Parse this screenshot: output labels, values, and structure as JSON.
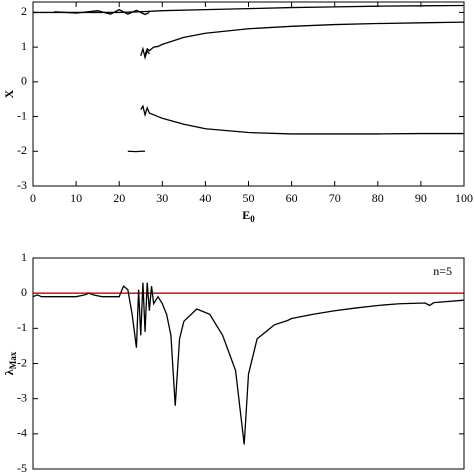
{
  "chart_data": [
    {
      "type": "line",
      "xlabel": "E",
      "xlabel_sub": "0",
      "ylabel": "X",
      "xlim": [
        0,
        100
      ],
      "ylim": [
        -3,
        2.3
      ],
      "xticks": [
        0,
        10,
        20,
        30,
        40,
        50,
        60,
        70,
        80,
        90,
        100
      ],
      "yticks": [
        -3,
        -2,
        -1,
        0,
        1,
        2
      ],
      "series": [
        {
          "color": "#000000",
          "x": [
            0,
            10,
            20,
            25,
            30,
            40,
            50,
            60,
            70,
            80,
            90,
            100
          ],
          "values": [
            2,
            2,
            2,
            2.02,
            2.05,
            2.08,
            2.11,
            2.14,
            2.16,
            2.18,
            2.19,
            2.2
          ]
        },
        {
          "color": "#000000",
          "x": [
            5,
            10,
            15,
            18,
            20,
            22,
            24,
            26,
            27
          ],
          "values": [
            2.02,
            1.98,
            2.05,
            1.95,
            2.08,
            1.95,
            2.06,
            1.94,
            2.0
          ]
        },
        {
          "color": "#000000",
          "x": [
            26,
            26.5,
            27,
            28,
            29,
            30,
            35,
            40,
            50,
            60,
            70,
            80,
            90,
            100
          ],
          "values": [
            0.78,
            0.95,
            0.9,
            1.0,
            1.02,
            1.08,
            1.28,
            1.4,
            1.53,
            1.6,
            1.65,
            1.68,
            1.7,
            1.72
          ]
        },
        {
          "color": "#000000",
          "x": [
            25,
            25.5,
            26,
            26.5,
            27
          ],
          "values": [
            0.75,
            0.95,
            0.7,
            0.9,
            0.8
          ]
        },
        {
          "color": "#000000",
          "x": [
            25,
            25.5,
            26,
            26.5,
            27,
            28,
            30,
            35,
            40,
            50,
            60,
            70,
            80,
            90,
            100
          ],
          "values": [
            -0.8,
            -0.7,
            -0.95,
            -0.75,
            -0.9,
            -0.95,
            -1.05,
            -1.22,
            -1.35,
            -1.46,
            -1.5,
            -1.5,
            -1.5,
            -1.49,
            -1.49
          ]
        },
        {
          "color": "#000000",
          "x": [
            22,
            24,
            25,
            26
          ],
          "values": [
            -2,
            -2.01,
            -2,
            -2
          ]
        }
      ]
    },
    {
      "type": "line",
      "ylabel": "λ",
      "ylabel_sub": "Max",
      "annotation": "n=5",
      "xlim": [
        0,
        100
      ],
      "ylim": [
        -5,
        1
      ],
      "yticks": [
        -5,
        -4,
        -3,
        -2,
        -1,
        0,
        1
      ],
      "hline": 0,
      "hline_color": "#e0201b",
      "series": [
        {
          "color": "#000000",
          "x": [
            0,
            1,
            2,
            10,
            12,
            13,
            14,
            16,
            20,
            20.5,
            21,
            22,
            23,
            24,
            24.5,
            25,
            25.5,
            26,
            26.5,
            27,
            27.5,
            28,
            29,
            30,
            31,
            32,
            33,
            34,
            35,
            38,
            41,
            44,
            47,
            49,
            50,
            52,
            56,
            59,
            60,
            65,
            70,
            75,
            80,
            85,
            91,
            92,
            93,
            100
          ],
          "values": [
            -0.1,
            -0.05,
            -0.1,
            -0.1,
            -0.05,
            0,
            -0.05,
            -0.1,
            -0.1,
            0.05,
            0.2,
            0.1,
            -0.6,
            -1.55,
            0.1,
            -1.2,
            0.3,
            -1.1,
            0.3,
            -0.5,
            0.2,
            -0.3,
            -0.1,
            -0.3,
            -0.6,
            -1.2,
            -3.2,
            -1.3,
            -0.8,
            -0.45,
            -0.6,
            -1.2,
            -2.2,
            -4.3,
            -2.3,
            -1.3,
            -0.9,
            -0.78,
            -0.72,
            -0.6,
            -0.5,
            -0.42,
            -0.35,
            -0.3,
            -0.28,
            -0.35,
            -0.27,
            -0.2
          ]
        }
      ]
    }
  ]
}
